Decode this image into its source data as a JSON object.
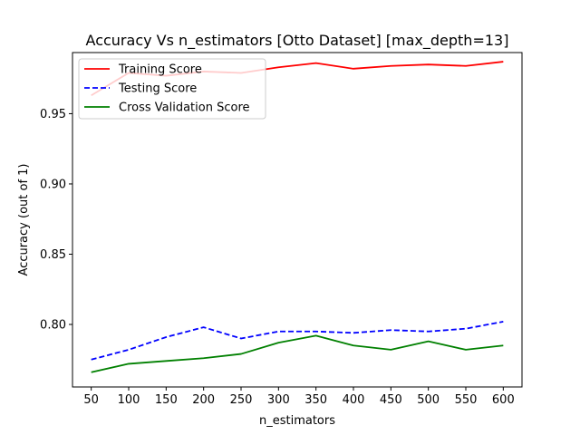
{
  "chart_data": {
    "type": "line",
    "title": "Accuracy Vs n_estimators [Otto Dataset] [max_depth=13]",
    "xlabel": "n_estimators",
    "ylabel": "Accuracy (out of 1)",
    "x": [
      50,
      100,
      150,
      200,
      250,
      300,
      350,
      400,
      450,
      500,
      550,
      600
    ],
    "x_ticks": [
      50,
      100,
      150,
      200,
      250,
      300,
      350,
      400,
      450,
      500,
      550,
      600
    ],
    "y_ticks": [
      0.8,
      0.85,
      0.9,
      0.95
    ],
    "y_tick_labels": [
      "0.80",
      "0.85",
      "0.90",
      "0.95"
    ],
    "xlim": [
      25,
      625
    ],
    "ylim": [
      0.7555,
      0.9935
    ],
    "grid": false,
    "legend_position": "top-left",
    "series": [
      {
        "name": "Training Score",
        "color": "#ff0000",
        "dash": "solid",
        "values": [
          0.963,
          0.979,
          0.977,
          0.98,
          0.979,
          0.983,
          0.986,
          0.982,
          0.984,
          0.985,
          0.984,
          0.987
        ]
      },
      {
        "name": "Testing Score",
        "color": "#0000ff",
        "dash": "dashed",
        "values": [
          0.775,
          0.782,
          0.791,
          0.798,
          0.79,
          0.795,
          0.795,
          0.794,
          0.796,
          0.795,
          0.797,
          0.802
        ]
      },
      {
        "name": "Cross Validation Score",
        "color": "#008000",
        "dash": "solid",
        "values": [
          0.766,
          0.772,
          0.774,
          0.776,
          0.779,
          0.787,
          0.792,
          0.785,
          0.782,
          0.788,
          0.782,
          0.785
        ]
      }
    ]
  }
}
